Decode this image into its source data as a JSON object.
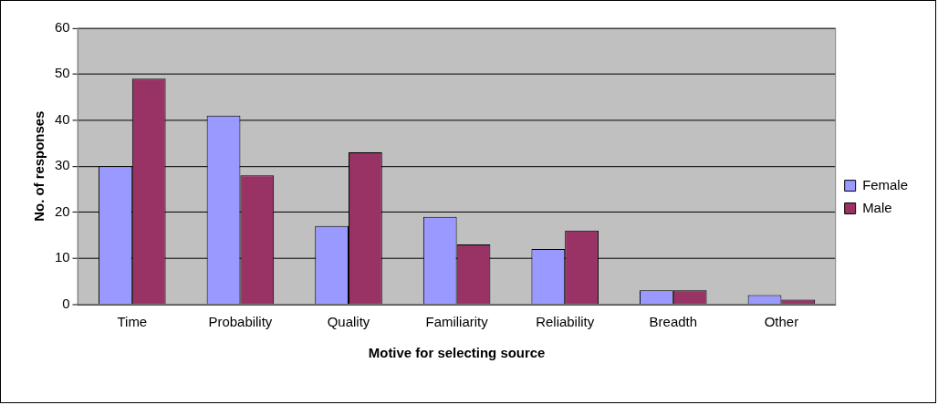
{
  "chart_data": {
    "type": "bar",
    "xlabel": "Motive for selecting source",
    "ylabel": "No. of responses",
    "categories": [
      "Time",
      "Probability",
      "Quality",
      "Familiarity",
      "Reliability",
      "Breadth",
      "Other"
    ],
    "series": [
      {
        "name": "Female",
        "color": "#9999ff",
        "values": [
          30,
          41,
          17,
          19,
          12,
          3,
          2
        ]
      },
      {
        "name": "Male",
        "color": "#993366",
        "values": [
          49,
          28,
          33,
          13,
          16,
          3,
          1
        ]
      }
    ],
    "ylim": [
      0,
      60
    ],
    "yticks": [
      0,
      10,
      20,
      30,
      40,
      50,
      60
    ],
    "grid": "y",
    "legend": "right"
  }
}
